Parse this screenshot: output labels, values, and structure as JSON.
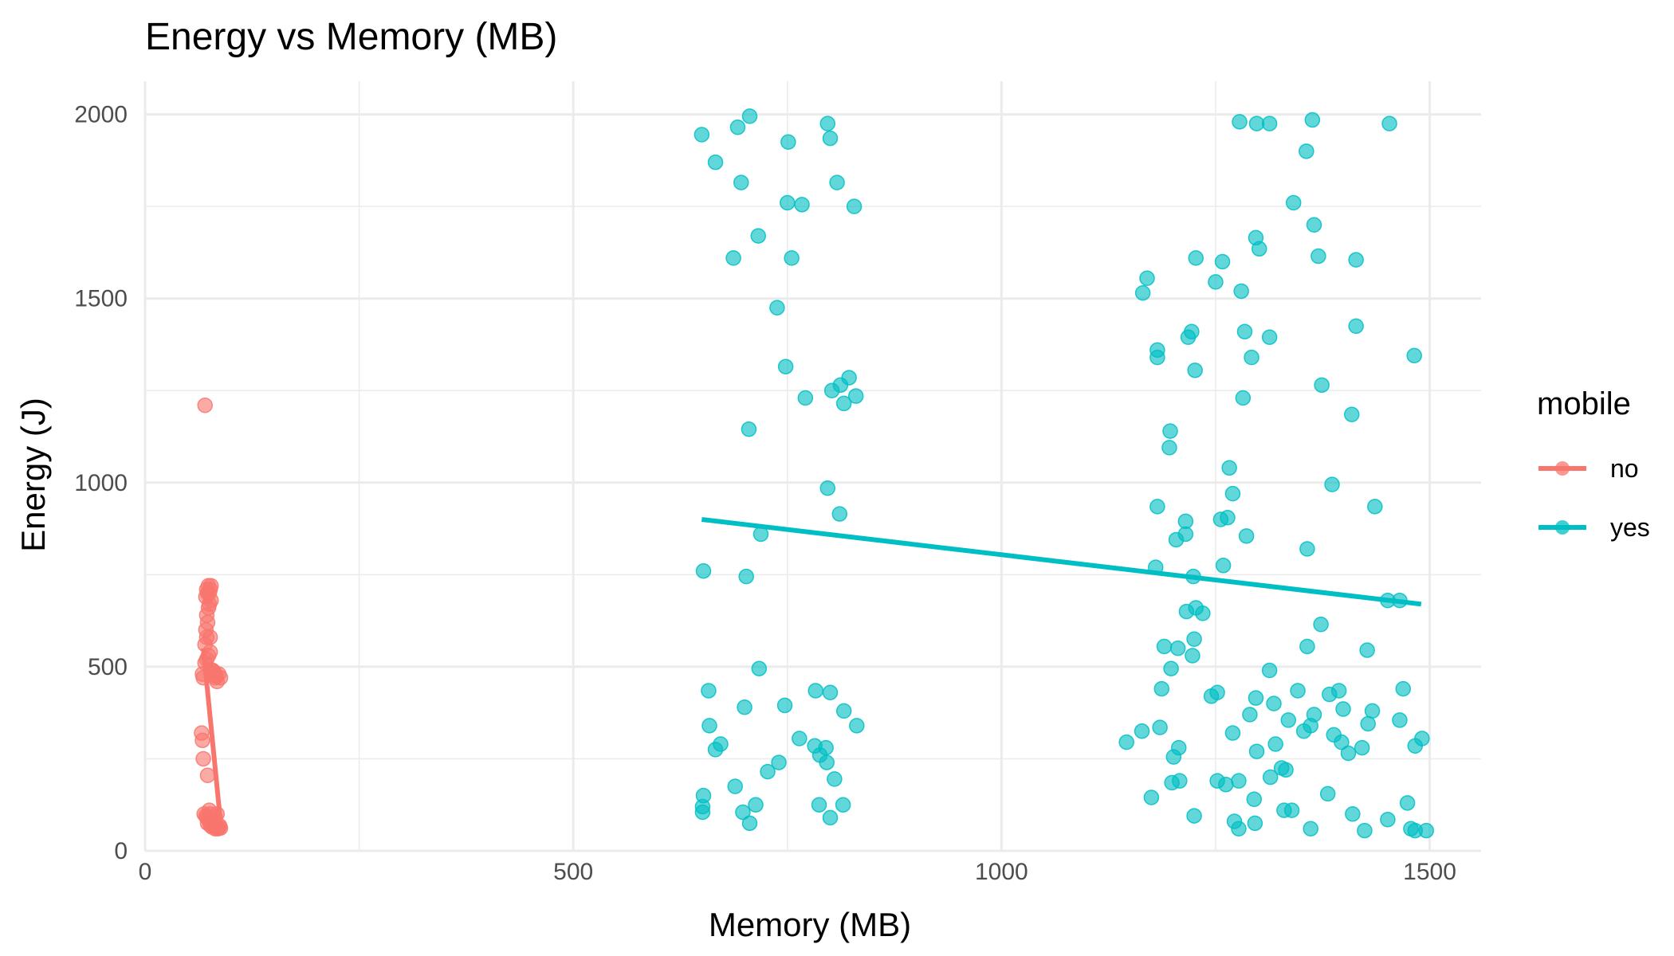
{
  "chart_data": {
    "type": "scatter",
    "title": "Energy vs Memory (MB)",
    "xlabel": "Memory (MB)",
    "ylabel": "Energy (J)",
    "xlim": [
      0,
      1560
    ],
    "ylim": [
      0,
      2090
    ],
    "x_ticks": [
      0,
      500,
      1000,
      1500
    ],
    "y_ticks": [
      0,
      500,
      1000,
      1500,
      2000
    ],
    "grid": true,
    "legend": {
      "title": "mobile",
      "placement": "right"
    },
    "series": [
      {
        "name": "no",
        "color": "#F8766D",
        "trend": {
          "x": [
            68,
            88
          ],
          "y": [
            550,
            80
          ]
        },
        "points": [
          [
            70,
            1210
          ],
          [
            66,
            320
          ],
          [
            67,
            300
          ],
          [
            68,
            250
          ],
          [
            73,
            205
          ],
          [
            67,
            480
          ],
          [
            68,
            470
          ],
          [
            70,
            510
          ],
          [
            72,
            520
          ],
          [
            74,
            530
          ],
          [
            76,
            540
          ],
          [
            70,
            560
          ],
          [
            72,
            580
          ],
          [
            76,
            580
          ],
          [
            71,
            600
          ],
          [
            73,
            620
          ],
          [
            72,
            640
          ],
          [
            74,
            660
          ],
          [
            75,
            670
          ],
          [
            77,
            680
          ],
          [
            71,
            690
          ],
          [
            73,
            700
          ],
          [
            75,
            700
          ],
          [
            76,
            710
          ],
          [
            74,
            720
          ],
          [
            77,
            720
          ],
          [
            72,
            710
          ],
          [
            78,
            490
          ],
          [
            80,
            480
          ],
          [
            82,
            470
          ],
          [
            84,
            460
          ],
          [
            86,
            480
          ],
          [
            88,
            470
          ],
          [
            79,
            490
          ],
          [
            81,
            485
          ],
          [
            83,
            475
          ],
          [
            69,
            100
          ],
          [
            71,
            95
          ],
          [
            72,
            90
          ],
          [
            74,
            85
          ],
          [
            76,
            100
          ],
          [
            75,
            110
          ],
          [
            77,
            90
          ],
          [
            78,
            80
          ],
          [
            80,
            75
          ],
          [
            79,
            70
          ],
          [
            81,
            65
          ],
          [
            82,
            60
          ],
          [
            83,
            70
          ],
          [
            84,
            65
          ],
          [
            85,
            60
          ],
          [
            86,
            62
          ],
          [
            87,
            68
          ],
          [
            88,
            62
          ],
          [
            73,
            75
          ],
          [
            76,
            70
          ],
          [
            78,
            65
          ],
          [
            80,
            80
          ],
          [
            82,
            90
          ],
          [
            84,
            100
          ]
        ]
      },
      {
        "name": "yes",
        "color": "#00BFC4",
        "trend": {
          "x": [
            650,
            1490
          ],
          "y": [
            900,
            670
          ]
        },
        "points": [
          [
            650,
            1945
          ],
          [
            666,
            1870
          ],
          [
            692,
            1965
          ],
          [
            706,
            1995
          ],
          [
            696,
            1815
          ],
          [
            751,
            1925
          ],
          [
            767,
            1755
          ],
          [
            797,
            1975
          ],
          [
            800,
            1935
          ],
          [
            808,
            1815
          ],
          [
            828,
            1750
          ],
          [
            750,
            1760
          ],
          [
            716,
            1670
          ],
          [
            687,
            1610
          ],
          [
            755,
            1610
          ],
          [
            738,
            1475
          ],
          [
            748,
            1315
          ],
          [
            812,
            1265
          ],
          [
            822,
            1285
          ],
          [
            830,
            1235
          ],
          [
            816,
            1215
          ],
          [
            802,
            1250
          ],
          [
            771,
            1230
          ],
          [
            705,
            1145
          ],
          [
            797,
            985
          ],
          [
            811,
            915
          ],
          [
            719,
            860
          ],
          [
            652,
            760
          ],
          [
            702,
            745
          ],
          [
            717,
            495
          ],
          [
            658,
            435
          ],
          [
            800,
            430
          ],
          [
            783,
            435
          ],
          [
            747,
            395
          ],
          [
            700,
            390
          ],
          [
            816,
            380
          ],
          [
            831,
            340
          ],
          [
            659,
            340
          ],
          [
            672,
            290
          ],
          [
            666,
            275
          ],
          [
            764,
            305
          ],
          [
            782,
            285
          ],
          [
            795,
            280
          ],
          [
            788,
            260
          ],
          [
            796,
            240
          ],
          [
            740,
            240
          ],
          [
            727,
            215
          ],
          [
            805,
            195
          ],
          [
            689,
            175
          ],
          [
            652,
            150
          ],
          [
            713,
            125
          ],
          [
            787,
            125
          ],
          [
            815,
            125
          ],
          [
            651,
            120
          ],
          [
            651,
            105
          ],
          [
            698,
            105
          ],
          [
            706,
            75
          ],
          [
            800,
            90
          ],
          [
            1170,
            1555
          ],
          [
            1165,
            1515
          ],
          [
            1227,
            1610
          ],
          [
            1258,
            1600
          ],
          [
            1250,
            1545
          ],
          [
            1280,
            1520
          ],
          [
            1297,
            1665
          ],
          [
            1301,
            1635
          ],
          [
            1222,
            1410
          ],
          [
            1218,
            1395
          ],
          [
            1182,
            1360
          ],
          [
            1182,
            1340
          ],
          [
            1284,
            1410
          ],
          [
            1292,
            1340
          ],
          [
            1313,
            1395
          ],
          [
            1226,
            1305
          ],
          [
            1282,
            1230
          ],
          [
            1197,
            1140
          ],
          [
            1196,
            1095
          ],
          [
            1266,
            1040
          ],
          [
            1270,
            970
          ],
          [
            1182,
            935
          ],
          [
            1215,
            895
          ],
          [
            1204,
            845
          ],
          [
            1215,
            860
          ],
          [
            1256,
            900
          ],
          [
            1264,
            905
          ],
          [
            1286,
            855
          ],
          [
            1224,
            745
          ],
          [
            1180,
            770
          ],
          [
            1259,
            775
          ],
          [
            1216,
            650
          ],
          [
            1235,
            645
          ],
          [
            1227,
            660
          ],
          [
            1190,
            555
          ],
          [
            1206,
            550
          ],
          [
            1223,
            530
          ],
          [
            1225,
            575
          ],
          [
            1198,
            495
          ],
          [
            1187,
            440
          ],
          [
            1245,
            420
          ],
          [
            1252,
            430
          ],
          [
            1278,
            1980
          ],
          [
            1298,
            1975
          ],
          [
            1313,
            1975
          ],
          [
            1363,
            1985
          ],
          [
            1453,
            1975
          ],
          [
            1356,
            1900
          ],
          [
            1341,
            1760
          ],
          [
            1365,
            1700
          ],
          [
            1370,
            1615
          ],
          [
            1414,
            1605
          ],
          [
            1414,
            1425
          ],
          [
            1374,
            1265
          ],
          [
            1409,
            1185
          ],
          [
            1386,
            995
          ],
          [
            1436,
            935
          ],
          [
            1357,
            820
          ],
          [
            1451,
            680
          ],
          [
            1465,
            680
          ],
          [
            1482,
            1345
          ],
          [
            1373,
            615
          ],
          [
            1357,
            555
          ],
          [
            1427,
            545
          ],
          [
            1313,
            490
          ],
          [
            1146,
            295
          ],
          [
            1164,
            325
          ],
          [
            1185,
            335
          ],
          [
            1207,
            280
          ],
          [
            1201,
            255
          ],
          [
            1270,
            320
          ],
          [
            1297,
            415
          ],
          [
            1290,
            370
          ],
          [
            1318,
            400
          ],
          [
            1335,
            355
          ],
          [
            1346,
            435
          ],
          [
            1361,
            340
          ],
          [
            1365,
            370
          ],
          [
            1388,
            315
          ],
          [
            1397,
            295
          ],
          [
            1399,
            385
          ],
          [
            1405,
            265
          ],
          [
            1421,
            280
          ],
          [
            1428,
            345
          ],
          [
            1433,
            380
          ],
          [
            1469,
            440
          ],
          [
            1465,
            355
          ],
          [
            1483,
            285
          ],
          [
            1491,
            305
          ],
          [
            1383,
            425
          ],
          [
            1394,
            435
          ],
          [
            1314,
            200
          ],
          [
            1327,
            225
          ],
          [
            1332,
            220
          ],
          [
            1298,
            270
          ],
          [
            1320,
            290
          ],
          [
            1353,
            325
          ],
          [
            1175,
            145
          ],
          [
            1199,
            185
          ],
          [
            1208,
            190
          ],
          [
            1252,
            190
          ],
          [
            1262,
            180
          ],
          [
            1277,
            190
          ],
          [
            1295,
            140
          ],
          [
            1330,
            110
          ],
          [
            1339,
            110
          ],
          [
            1381,
            155
          ],
          [
            1410,
            100
          ],
          [
            1451,
            85
          ],
          [
            1474,
            130
          ],
          [
            1478,
            60
          ],
          [
            1483,
            55
          ],
          [
            1496,
            55
          ],
          [
            1424,
            55
          ],
          [
            1361,
            60
          ],
          [
            1296,
            75
          ],
          [
            1277,
            60
          ],
          [
            1272,
            80
          ],
          [
            1225,
            95
          ]
        ]
      }
    ]
  }
}
